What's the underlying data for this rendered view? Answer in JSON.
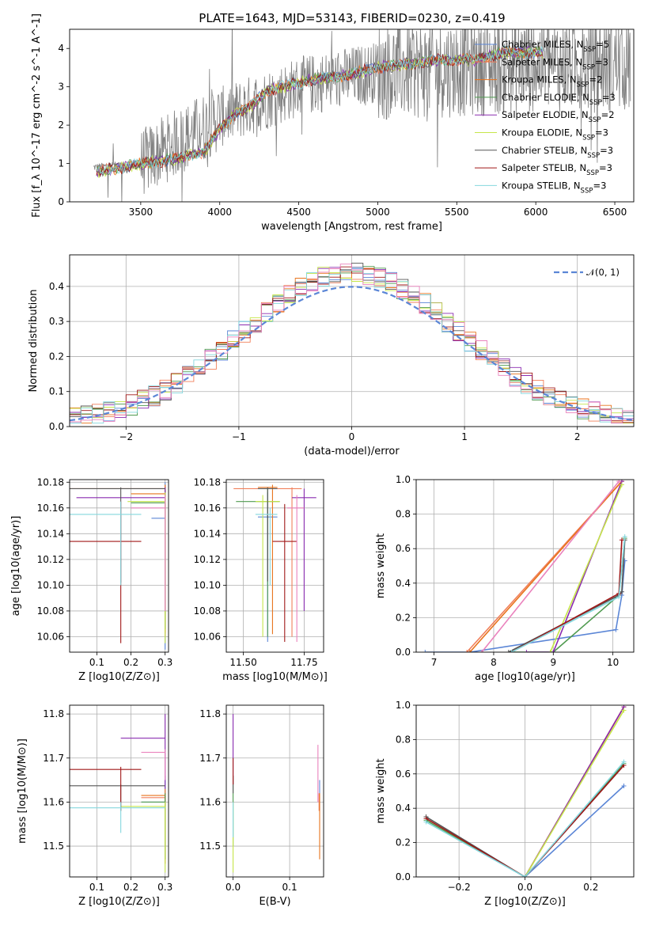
{
  "figure": {
    "title": "PLATE=1643, MJD=53143, FIBERID=0230, z=0.419"
  },
  "colors": {
    "Chabrier MILES": "#5b86d6",
    "Salpeter MILES": "#f07f5a",
    "Kroupa MILES": "#e8731c",
    "Chabrier ELODIE": "#4f9a4f",
    "Salpeter ELODIE": "#8a2bb0",
    "Kroupa ELODIE": "#c6e64a",
    "Chabrier STELIB": "#555555",
    "Salpeter STELIB": "#a01818",
    "Kroupa STELIB": "#85d7de",
    "pink": "#ea82bd",
    "data": "#7f7f7f",
    "normal": "#5b86d6"
  },
  "chart_data": [
    {
      "id": "spectrum",
      "type": "line",
      "xlabel": "wavelength [Angstrom, rest frame]",
      "ylabel": "Flux [f_λ 10^-17 erg cm^-2 s^-1 A^-1]",
      "xlim": [
        3050,
        6620
      ],
      "ylim": [
        0,
        4.5
      ],
      "xticks": [
        3500,
        4000,
        4500,
        5000,
        5500,
        6000,
        6500
      ],
      "yticks": [
        0,
        1,
        2,
        3,
        4
      ],
      "legend_position": "upper right",
      "legend": [
        {
          "model": "Chabrier MILES",
          "nssp": "5"
        },
        {
          "model": "Salpeter MILES",
          "nssp": "3"
        },
        {
          "model": "Kroupa MILES",
          "nssp": "2"
        },
        {
          "model": "Chabrier ELODIE",
          "nssp": "3"
        },
        {
          "model": "Salpeter ELODIE",
          "nssp": "2"
        },
        {
          "model": "Kroupa ELODIE",
          "nssp": "3"
        },
        {
          "model": "Chabrier STELIB",
          "nssp": "3"
        },
        {
          "model": "Salpeter STELIB",
          "nssp": "3"
        },
        {
          "model": "Kroupa STELIB",
          "nssp": "3"
        }
      ],
      "model_continuum": {
        "x": [
          3220,
          3300,
          3400,
          3500,
          3600,
          3700,
          3800,
          3900,
          4000,
          4100,
          4200,
          4300,
          4400,
          4500,
          4600,
          4800,
          5000,
          5200,
          5400,
          5600,
          5800,
          6000,
          6050
        ],
        "y": [
          0.75,
          0.85,
          0.9,
          1.0,
          1.05,
          1.1,
          1.2,
          1.3,
          1.9,
          2.3,
          2.5,
          2.9,
          3.0,
          3.1,
          3.2,
          3.3,
          3.5,
          3.6,
          3.7,
          3.7,
          3.9,
          3.9,
          3.9
        ]
      },
      "data_envelope": {
        "x": [
          3200,
          3500,
          4000,
          4500,
          5000,
          5500,
          6000,
          6600
        ],
        "y": [
          0.9,
          1.0,
          2.2,
          3.0,
          3.4,
          3.5,
          3.6,
          3.6
        ]
      }
    },
    {
      "id": "residuals",
      "type": "line",
      "xlabel": "(data-model)/error",
      "ylabel": "Normed distribution",
      "xlim": [
        -2.5,
        2.5
      ],
      "ylim": [
        0,
        0.49
      ],
      "xticks": [
        -2,
        -1,
        0,
        1,
        2
      ],
      "yticks": [
        0.0,
        0.1,
        0.2,
        0.3,
        0.4
      ],
      "legend_position": "upper right",
      "reference_label": "𝒩(0, 1)",
      "reference_curve": "standard normal density"
    },
    {
      "id": "age-vs-Z",
      "type": "scatter",
      "xlabel": "Z [log10(Z/Z⊙)]",
      "ylabel": "age  [log10(age/yr)]",
      "xlim": [
        0.02,
        0.31
      ],
      "ylim": [
        10.048,
        10.182
      ],
      "xticks": [
        0.1,
        0.2,
        0.3
      ],
      "yticks": [
        10.06,
        10.08,
        10.1,
        10.12,
        10.14,
        10.16,
        10.18
      ],
      "points": [
        {
          "model": "Chabrier MILES",
          "x": 0.3,
          "y": 10.152,
          "xerr": [
            0.26,
            0.3
          ],
          "yerr": [
            10.05,
            10.18
          ]
        },
        {
          "model": "Salpeter MILES",
          "x": 0.3,
          "y": 10.175,
          "xerr": [
            0.02,
            0.3
          ],
          "yerr": [
            10.06,
            10.178
          ]
        },
        {
          "model": "Kroupa MILES",
          "x": 0.3,
          "y": 10.171,
          "xerr": [
            0.2,
            0.3
          ],
          "yerr": [
            10.063,
            10.178
          ]
        },
        {
          "model": "Chabrier ELODIE",
          "x": 0.3,
          "y": 10.164,
          "xerr": [
            0.2,
            0.3
          ],
          "yerr": [
            10.066,
            10.174
          ]
        },
        {
          "model": "Salpeter ELODIE",
          "x": 0.3,
          "y": 10.168,
          "xerr": [
            0.04,
            0.3
          ],
          "yerr": [
            10.08,
            10.176
          ]
        },
        {
          "model": "Kroupa ELODIE",
          "x": 0.3,
          "y": 10.165,
          "xerr": [
            0.19,
            0.3
          ],
          "yerr": [
            10.055,
            10.172
          ]
        },
        {
          "model": "Chabrier STELIB",
          "x": 0.17,
          "y": 10.175,
          "xerr": [
            0.02,
            0.3
          ],
          "yerr": [
            10.102,
            10.176
          ]
        },
        {
          "model": "Salpeter STELIB",
          "x": 0.17,
          "y": 10.134,
          "xerr": [
            0.02,
            0.23
          ],
          "yerr": [
            10.055,
            10.165
          ]
        },
        {
          "model": "Kroupa STELIB",
          "x": 0.17,
          "y": 10.155,
          "xerr": [
            0.02,
            0.23
          ],
          "yerr": [
            10.1,
            10.165
          ]
        },
        {
          "model": "pink",
          "x": 0.3,
          "y": 10.16,
          "xerr": [
            0.2,
            0.3
          ],
          "yerr": [
            10.08,
            10.17
          ]
        }
      ]
    },
    {
      "id": "age-vs-mass",
      "type": "scatter",
      "xlabel": "mass [log10(M/M⊙)]",
      "ylabel": "",
      "xlim": [
        11.43,
        11.83
      ],
      "ylim": [
        10.048,
        10.182
      ],
      "xticks": [
        11.5,
        11.75
      ],
      "yticks": [
        10.06,
        10.08,
        10.1,
        10.12,
        10.14,
        10.16,
        10.18
      ],
      "points": [
        {
          "model": "Chabrier MILES",
          "x": 11.6,
          "y": 10.153,
          "xerr": [
            11.56,
            11.64
          ],
          "yerr": [
            10.056,
            10.172
          ]
        },
        {
          "model": "Salpeter MILES",
          "x": 11.7,
          "y": 10.175,
          "xerr": [
            11.46,
            11.74
          ],
          "yerr": [
            10.06,
            10.176
          ]
        },
        {
          "model": "Kroupa MILES",
          "x": 11.62,
          "y": 10.176,
          "xerr": [
            11.56,
            11.64
          ],
          "yerr": [
            10.062,
            10.178
          ]
        },
        {
          "model": "Chabrier ELODIE",
          "x": 11.6,
          "y": 10.165,
          "xerr": [
            11.47,
            11.65
          ],
          "yerr": [
            10.06,
            10.175
          ]
        },
        {
          "model": "Salpeter ELODIE",
          "x": 11.75,
          "y": 10.168,
          "xerr": [
            11.7,
            11.8
          ],
          "yerr": [
            10.08,
            10.175
          ]
        },
        {
          "model": "Kroupa ELODIE",
          "x": 11.58,
          "y": 10.165,
          "xerr": [
            11.55,
            11.65
          ],
          "yerr": [
            10.06,
            10.17
          ]
        },
        {
          "model": "Chabrier STELIB",
          "x": 11.6,
          "y": 10.175,
          "xerr": [
            11.56,
            11.64
          ],
          "yerr": [
            10.103,
            10.176
          ]
        },
        {
          "model": "Salpeter STELIB",
          "x": 11.67,
          "y": 10.134,
          "xerr": [
            11.62,
            11.72
          ],
          "yerr": [
            10.056,
            10.163
          ]
        },
        {
          "model": "Kroupa STELIB",
          "x": 11.61,
          "y": 10.155,
          "xerr": [
            11.55,
            11.64
          ],
          "yerr": [
            10.1,
            10.16
          ]
        },
        {
          "model": "pink",
          "x": 11.72,
          "y": 10.16,
          "xerr": [
            11.68,
            11.75
          ],
          "yerr": [
            10.056,
            10.17
          ]
        }
      ]
    },
    {
      "id": "massweight-vs-age",
      "type": "line",
      "xlabel": "age  [log10(age/yr)]",
      "ylabel": "mass weight",
      "xlim": [
        6.7,
        10.35
      ],
      "ylim": [
        0,
        1.0
      ],
      "xticks": [
        7,
        8,
        9,
        10
      ],
      "yticks": [
        0.0,
        0.2,
        0.4,
        0.6,
        0.8,
        1.0
      ],
      "series": [
        {
          "model": "Chabrier MILES",
          "x": [
            6.85,
            7.6,
            10.05,
            10.15,
            10.2
          ],
          "y": [
            0.0,
            0.0,
            0.13,
            0.33,
            0.53
          ]
        },
        {
          "model": "Salpeter MILES",
          "x": [
            7.55,
            10.15
          ],
          "y": [
            0.0,
            0.99
          ]
        },
        {
          "model": "Kroupa MILES",
          "x": [
            7.6,
            10.15
          ],
          "y": [
            0.0,
            0.99
          ]
        },
        {
          "model": "Chabrier ELODIE",
          "x": [
            8.3,
            9.0,
            10.1,
            10.2
          ],
          "y": [
            0.0,
            0.0,
            0.33,
            0.66
          ]
        },
        {
          "model": "Salpeter ELODIE",
          "x": [
            8.55,
            9.0,
            10.15
          ],
          "y": [
            0.0,
            0.0,
            0.99
          ]
        },
        {
          "model": "Kroupa ELODIE",
          "x": [
            8.95,
            10.15
          ],
          "y": [
            0.0,
            0.97
          ]
        },
        {
          "model": "Chabrier STELIB",
          "x": [
            8.25,
            10.1,
            10.15,
            10.2
          ],
          "y": [
            0.0,
            0.33,
            0.35,
            0.65
          ]
        },
        {
          "model": "Salpeter STELIB",
          "x": [
            8.3,
            10.1,
            10.15
          ],
          "y": [
            0.0,
            0.34,
            0.65
          ]
        },
        {
          "model": "Kroupa STELIB",
          "x": [
            8.3,
            10.1,
            10.2
          ],
          "y": [
            0.0,
            0.32,
            0.67
          ]
        },
        {
          "model": "pink",
          "x": [
            7.8,
            10.1
          ],
          "y": [
            0.0,
            0.99
          ]
        }
      ]
    },
    {
      "id": "mass-vs-Z",
      "type": "scatter",
      "xlabel": "Z [log10(Z/Z⊙)]",
      "ylabel": "mass [log10(M/M⊙)]",
      "xlim": [
        0.02,
        0.31
      ],
      "ylim": [
        11.43,
        11.82
      ],
      "xticks": [
        0.1,
        0.2,
        0.3
      ],
      "yticks": [
        11.5,
        11.6,
        11.7,
        11.8
      ],
      "points": [
        {
          "model": "Chabrier MILES",
          "x": 0.3,
          "y": 11.6,
          "xerr": [
            0.23,
            0.3
          ],
          "yerr": [
            11.58,
            11.66
          ]
        },
        {
          "model": "Salpeter MILES",
          "x": 0.3,
          "y": 11.61,
          "xerr": [
            0.23,
            0.3
          ],
          "yerr": [
            11.47,
            11.62
          ]
        },
        {
          "model": "Kroupa MILES",
          "x": 0.3,
          "y": 11.615,
          "xerr": [
            0.23,
            0.3
          ],
          "yerr": [
            11.46,
            11.63
          ]
        },
        {
          "model": "Chabrier ELODIE",
          "x": 0.3,
          "y": 11.6,
          "xerr": [
            0.23,
            0.3
          ],
          "yerr": [
            11.47,
            11.62
          ]
        },
        {
          "model": "Salpeter ELODIE",
          "x": 0.3,
          "y": 11.745,
          "xerr": [
            0.17,
            0.3
          ],
          "yerr": [
            11.63,
            11.8
          ]
        },
        {
          "model": "Kroupa ELODIE",
          "x": 0.3,
          "y": 11.59,
          "xerr": [
            0.17,
            0.3
          ],
          "yerr": [
            11.44,
            11.6
          ]
        },
        {
          "model": "Chabrier STELIB",
          "x": 0.17,
          "y": 11.637,
          "xerr": [
            0.02,
            0.3
          ],
          "yerr": [
            11.58,
            11.64
          ]
        },
        {
          "model": "Salpeter STELIB",
          "x": 0.17,
          "y": 11.674,
          "xerr": [
            0.02,
            0.23
          ],
          "yerr": [
            11.58,
            11.68
          ]
        },
        {
          "model": "Kroupa STELIB",
          "x": 0.17,
          "y": 11.587,
          "xerr": [
            0.02,
            0.3
          ],
          "yerr": [
            11.53,
            11.6
          ]
        },
        {
          "model": "pink",
          "x": 0.3,
          "y": 11.713,
          "xerr": [
            0.23,
            0.3
          ],
          "yerr": [
            11.65,
            11.72
          ]
        }
      ]
    },
    {
      "id": "mass-vs-EBV",
      "type": "scatter",
      "xlabel": "E(B-V)",
      "ylabel": "",
      "xlim": [
        -0.012,
        0.16
      ],
      "ylim": [
        11.43,
        11.82
      ],
      "xticks": [
        0.0,
        0.1
      ],
      "yticks": [
        11.5,
        11.6,
        11.7,
        11.8
      ],
      "points": [
        {
          "model": "Chabrier MILES",
          "x": 0.153,
          "y": 11.6,
          "yerr": [
            11.58,
            11.65
          ]
        },
        {
          "model": "Salpeter MILES",
          "x": 0.152,
          "y": 11.61,
          "yerr": [
            11.58,
            11.62
          ]
        },
        {
          "model": "Kroupa MILES",
          "x": 0.153,
          "y": 11.61,
          "yerr": [
            11.47,
            11.62
          ]
        },
        {
          "model": "Chabrier ELODIE",
          "x": 0.0,
          "y": 11.6,
          "yerr": [
            11.5,
            11.66
          ]
        },
        {
          "model": "Salpeter ELODIE",
          "x": 0.0,
          "y": 11.745,
          "yerr": [
            11.64,
            11.8
          ]
        },
        {
          "model": "Kroupa ELODIE",
          "x": 0.0,
          "y": 11.59,
          "yerr": [
            11.44,
            11.6
          ]
        },
        {
          "model": "Chabrier STELIB",
          "x": 0.0,
          "y": 11.637,
          "yerr": [
            11.62,
            11.66
          ]
        },
        {
          "model": "Salpeter STELIB",
          "x": 0.0,
          "y": 11.674,
          "yerr": [
            11.64,
            11.7
          ]
        },
        {
          "model": "Kroupa STELIB",
          "x": 0.0,
          "y": 11.587,
          "yerr": [
            11.52,
            11.6
          ]
        },
        {
          "model": "pink",
          "x": 0.15,
          "y": 11.713,
          "yerr": [
            11.6,
            11.73
          ]
        }
      ]
    },
    {
      "id": "massweight-vs-Z",
      "type": "line",
      "xlabel": "Z [log10(Z/Z⊙)]",
      "ylabel": "mass weight",
      "xlim": [
        -0.33,
        0.33
      ],
      "ylim": [
        0,
        1.0
      ],
      "xticks": [
        -0.2,
        0.0,
        0.2
      ],
      "yticks": [
        0.0,
        0.2,
        0.4,
        0.6,
        0.8,
        1.0
      ],
      "series": [
        {
          "model": "Chabrier MILES",
          "x": [
            0.0,
            0.3
          ],
          "y": [
            0.0,
            0.53
          ]
        },
        {
          "model": "Salpeter MILES",
          "x": [
            0.0,
            0.3
          ],
          "y": [
            0.0,
            0.99
          ]
        },
        {
          "model": "Kroupa MILES",
          "x": [
            0.0,
            0.3
          ],
          "y": [
            0.0,
            0.99
          ]
        },
        {
          "model": "Chabrier ELODIE",
          "x": [
            -0.3,
            0.0,
            0.3
          ],
          "y": [
            0.33,
            0.0,
            0.66
          ]
        },
        {
          "model": "Salpeter ELODIE",
          "x": [
            0.0,
            0.3
          ],
          "y": [
            0.0,
            0.99
          ]
        },
        {
          "model": "Kroupa ELODIE",
          "x": [
            0.0,
            0.3
          ],
          "y": [
            0.0,
            0.97
          ]
        },
        {
          "model": "Chabrier STELIB",
          "x": [
            -0.3,
            0.0,
            0.3
          ],
          "y": [
            0.35,
            0.0,
            0.65
          ]
        },
        {
          "model": "Salpeter STELIB",
          "x": [
            -0.3,
            0.0,
            0.3
          ],
          "y": [
            0.34,
            0.0,
            0.65
          ]
        },
        {
          "model": "Kroupa STELIB",
          "x": [
            -0.3,
            0.0,
            0.3
          ],
          "y": [
            0.32,
            0.0,
            0.67
          ]
        }
      ]
    }
  ]
}
